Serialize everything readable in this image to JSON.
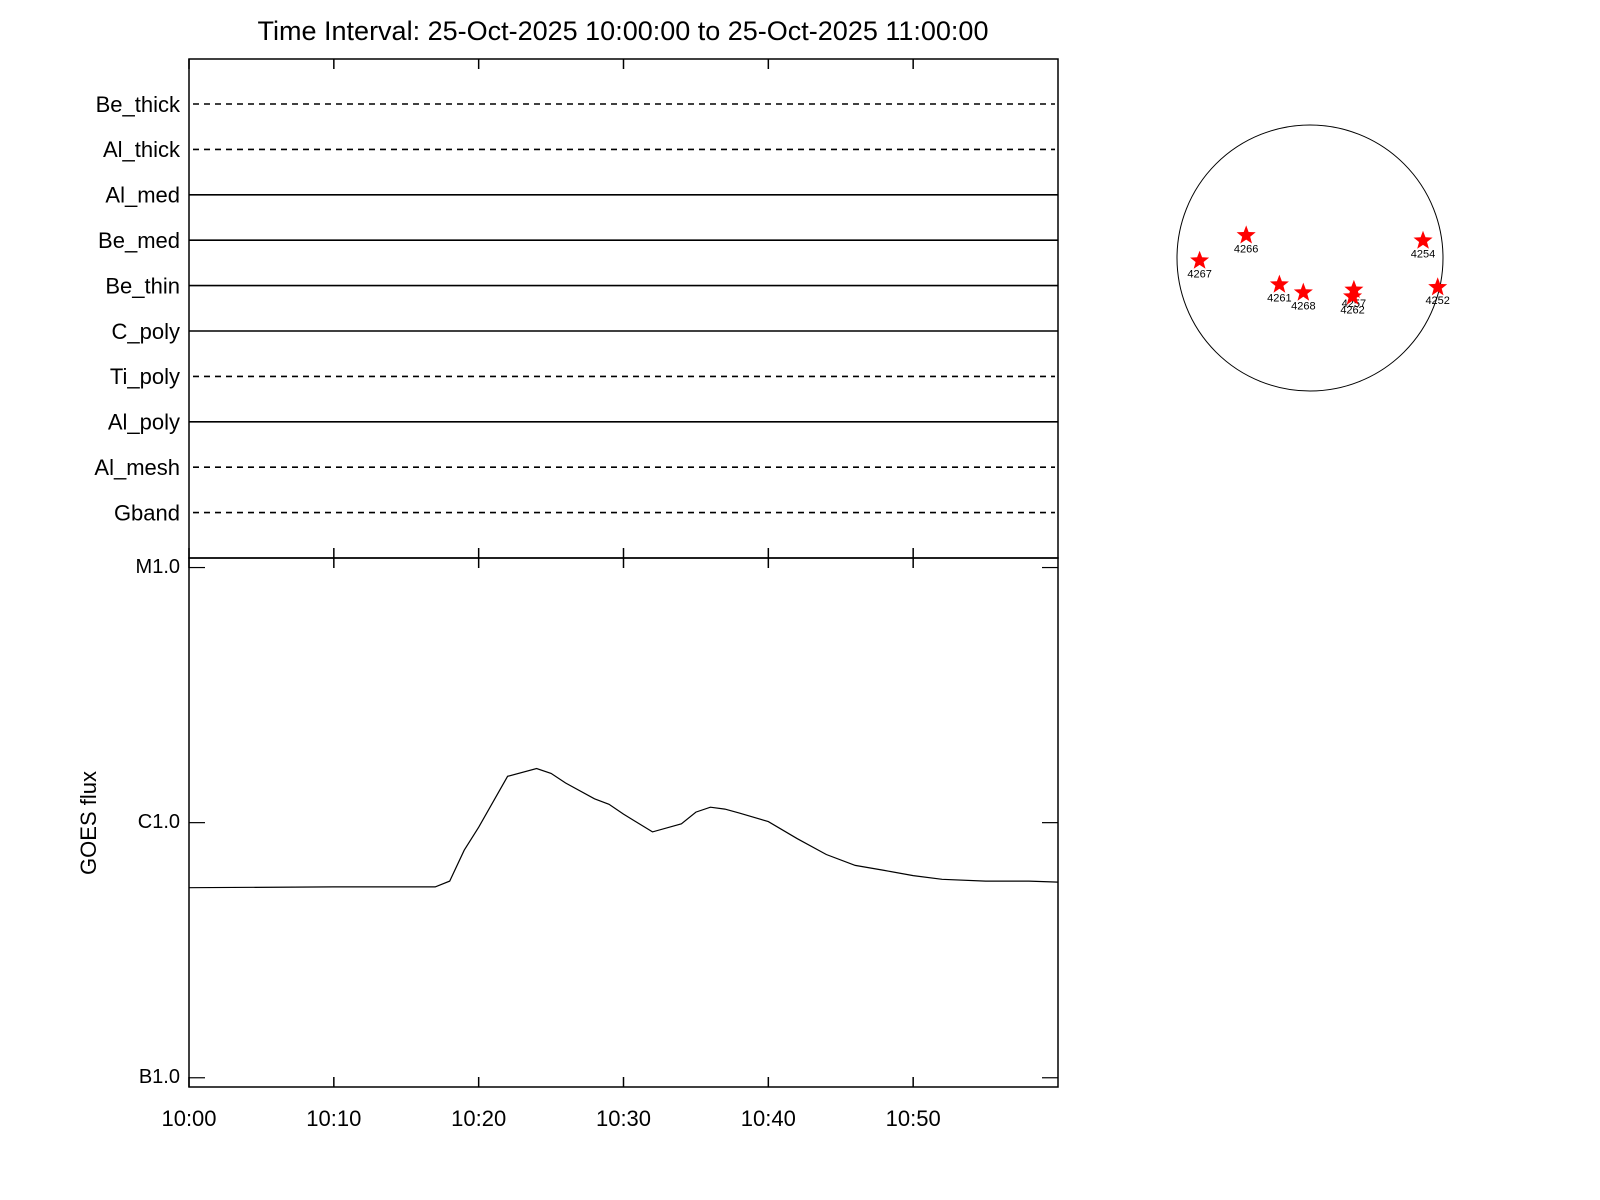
{
  "chart_data": [
    {
      "type": "timeline",
      "title": "Time Interval: 25-Oct-2025 10:00:00 to 25-Oct-2025 11:00:00",
      "filters": [
        {
          "name": "Be_thick",
          "style": "dashed"
        },
        {
          "name": "Al_thick",
          "style": "dashed"
        },
        {
          "name": "Al_med",
          "style": "solid"
        },
        {
          "name": "Be_med",
          "style": "solid"
        },
        {
          "name": "Be_thin",
          "style": "solid"
        },
        {
          "name": "C_poly",
          "style": "solid"
        },
        {
          "name": "Ti_poly",
          "style": "dashed"
        },
        {
          "name": "Al_poly",
          "style": "solid"
        },
        {
          "name": "Al_mesh",
          "style": "dashed"
        },
        {
          "name": "Gband",
          "style": "dashed"
        }
      ],
      "xlim": [
        "10:00",
        "11:00"
      ],
      "xticks": [
        "10:00",
        "10:10",
        "10:20",
        "10:30",
        "10:40",
        "10:50"
      ]
    },
    {
      "type": "line",
      "y_label": "GOES flux",
      "log_y": true,
      "color": "#000000",
      "x": [
        "10:00",
        "10:10",
        "10:17",
        "10:18",
        "10:19",
        "10:20",
        "10:22",
        "10:24",
        "10:25",
        "10:26",
        "10:28",
        "10:29",
        "10:30",
        "10:32",
        "10:34",
        "10:35",
        "10:36",
        "10:37",
        "10:38",
        "10:40",
        "10:42",
        "10:44",
        "10:46",
        "10:48",
        "10:50",
        "10:52",
        "10:55",
        "10:58",
        "11:00"
      ],
      "values": [
        5.56e-07,
        5.6e-07,
        5.6e-07,
        5.9e-07,
        7.8e-07,
        9.6e-07,
        1.52e-06,
        1.63e-06,
        1.56e-06,
        1.43e-06,
        1.24e-06,
        1.18e-06,
        1.08e-06,
        9.2e-07,
        9.9e-07,
        1.1e-06,
        1.15e-06,
        1.13e-06,
        1.09e-06,
        1.01e-06,
        8.65e-07,
        7.5e-07,
        6.8e-07,
        6.5e-07,
        6.2e-07,
        6e-07,
        5.9e-07,
        5.9e-07,
        5.85e-07
      ],
      "xlim": [
        "10:00",
        "11:00"
      ],
      "xticks": [
        "10:00",
        "10:10",
        "10:20",
        "10:30",
        "10:40",
        "10:50"
      ],
      "ylim": [
        9.2e-08,
        1.09e-05
      ],
      "yticks": [
        {
          "value": 1e-07,
          "label": "B1.0"
        },
        {
          "value": 1e-06,
          "label": "C1.0"
        },
        {
          "value": 1e-05,
          "label": "M1.0"
        }
      ]
    },
    {
      "type": "disk",
      "color": "#ff0000",
      "xlim": [
        -1,
        1
      ],
      "ylim": [
        -1,
        1
      ],
      "regions": [
        {
          "name": "4267",
          "x": -0.83,
          "y": -0.02
        },
        {
          "name": "4266",
          "x": -0.48,
          "y": 0.17
        },
        {
          "name": "4254",
          "x": 0.85,
          "y": 0.13
        },
        {
          "name": "4261",
          "x": -0.23,
          "y": -0.2
        },
        {
          "name": "4268",
          "x": -0.05,
          "y": -0.26
        },
        {
          "name": "4257",
          "x": 0.33,
          "y": -0.24
        },
        {
          "name": "4262",
          "x": 0.32,
          "y": -0.29
        },
        {
          "name": "4252",
          "x": 0.96,
          "y": -0.22
        }
      ]
    }
  ]
}
